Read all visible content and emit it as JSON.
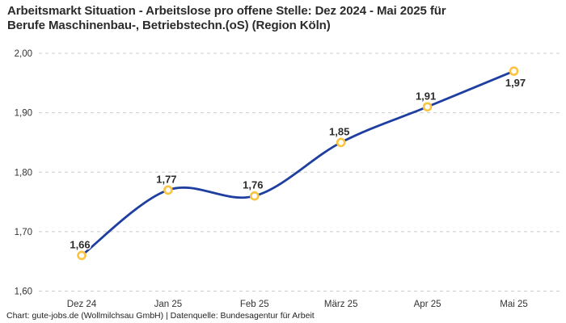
{
  "header": {
    "title_line1": "Arbeitsmarkt Situation - Arbeitslose pro offene Stelle: Dez 2024 - Mai 2025 für",
    "title_line2": "Berufe Maschinenbau-, Betriebstechn.(oS) (Region Köln)"
  },
  "footer": {
    "credit": "Chart: gute-jobs.de (Wollmilchsau GmbH) | Datenquelle: Bundesagentur für Arbeit"
  },
  "colors": {
    "line": "#1e3fa0",
    "marker_ring": "#f9c440",
    "marker_fill": "#ffffff",
    "grid": "#cccccc",
    "tick_text": "#333333",
    "data_label": "#2b2b2b",
    "title_text": "#2b2b2b"
  },
  "chart_data": {
    "type": "line",
    "title": "Arbeitsmarkt Situation - Arbeitslose pro offene Stelle: Dez 2024 - Mai 2025 für Berufe Maschinenbau-, Betriebstechn.(oS) (Region Köln)",
    "categories": [
      "Dez 24",
      "Jan 25",
      "Feb 25",
      "März 25",
      "Apr 25",
      "Mai 25"
    ],
    "series": [
      {
        "name": "Arbeitslose pro offene Stelle",
        "values": [
          1.66,
          1.77,
          1.76,
          1.85,
          1.91,
          1.97
        ],
        "point_labels": [
          "1,66",
          "1,77",
          "1,76",
          "1,85",
          "1,91",
          "1,97"
        ]
      }
    ],
    "xlabel": "",
    "ylabel": "",
    "ylim": [
      1.6,
      2.0
    ],
    "yticks": [
      {
        "value": 1.6,
        "label": "1,60"
      },
      {
        "value": 1.7,
        "label": "1,70"
      },
      {
        "value": 1.8,
        "label": "1,80"
      },
      {
        "value": 1.9,
        "label": "1,90"
      },
      {
        "value": 2.0,
        "label": "2,00"
      }
    ],
    "grid": "dashed-horizontal",
    "legend": "none"
  }
}
